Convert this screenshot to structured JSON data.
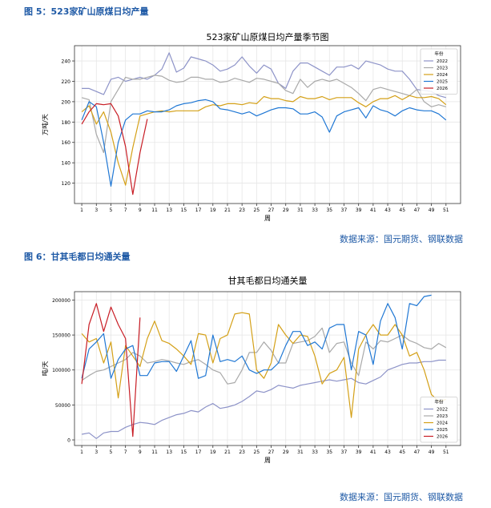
{
  "figures": [
    {
      "caption": "图 5：523家矿山原煤日均产量",
      "source": "数据来源：国元期货、钢联数据"
    },
    {
      "caption": "图 6：甘其毛都日均通关量",
      "source": "数据来源：国元期货、钢联数据"
    }
  ],
  "colors": {
    "2022": "#8d93c8",
    "2023": "#a9a9a9",
    "2024": "#d4a017",
    "2025": "#1f77d4",
    "2026": "#c81d25"
  },
  "chart_data": [
    {
      "type": "line",
      "title": "523家矿山原煤日均产量季节图",
      "xlabel": "周",
      "ylabel": "万吨/天",
      "xlim": [
        0,
        53
      ],
      "ylim": [
        100,
        255
      ],
      "xticks": [
        1,
        3,
        5,
        7,
        9,
        11,
        13,
        15,
        17,
        19,
        21,
        23,
        25,
        27,
        29,
        31,
        33,
        35,
        37,
        39,
        41,
        43,
        45,
        47,
        49,
        51
      ],
      "yticks": [
        120,
        140,
        160,
        180,
        200,
        220,
        240
      ],
      "legend_title": "年份",
      "legend_position": "top-right",
      "series": [
        {
          "name": "2022",
          "values": [
            213,
            213,
            210,
            207,
            222,
            224,
            220,
            222,
            224,
            222,
            226,
            232,
            248,
            229,
            233,
            244,
            242,
            240,
            236,
            230,
            232,
            236,
            244,
            235,
            228,
            236,
            232,
            218,
            213,
            230,
            238,
            238,
            234,
            230,
            226,
            234,
            234,
            236,
            232,
            240,
            238,
            236,
            232,
            230,
            230,
            222,
            212,
            211,
            210,
            206,
            204
          ]
        },
        {
          "name": "2023",
          "values": [
            204,
            202,
            168,
            150,
            200,
            212,
            224,
            222,
            222,
            224,
            226,
            225,
            221,
            219,
            220,
            224,
            224,
            222,
            222,
            219,
            220,
            223,
            221,
            219,
            223,
            222,
            220,
            218,
            211,
            208,
            222,
            214,
            220,
            222,
            220,
            222,
            218,
            214,
            208,
            201,
            212,
            214,
            212,
            210,
            208,
            206,
            212,
            200,
            195,
            197,
            195
          ]
        },
        {
          "name": "2024",
          "values": [
            190,
            196,
            178,
            190,
            170,
            140,
            118,
            155,
            186,
            188,
            190,
            191,
            190,
            191,
            191,
            191,
            191,
            195,
            197,
            196,
            198,
            198,
            197,
            199,
            198,
            205,
            203,
            203,
            201,
            200,
            205,
            203,
            203,
            205,
            202,
            204,
            204,
            204,
            199,
            195,
            200,
            203,
            203,
            206,
            202,
            206,
            204,
            204,
            205,
            203,
            197
          ]
        },
        {
          "name": "2025",
          "values": [
            182,
            200,
            195,
            160,
            117,
            160,
            182,
            188,
            188,
            191,
            190,
            190,
            192,
            196,
            198,
            199,
            201,
            202,
            200,
            193,
            192,
            190,
            188,
            190,
            186,
            189,
            192,
            194,
            194,
            193,
            188,
            188,
            190,
            185,
            170,
            186,
            190,
            192,
            194,
            184,
            196,
            192,
            190,
            186,
            191,
            194,
            192,
            191,
            191,
            188,
            182
          ]
        },
        {
          "name": "2026",
          "values": [
            178,
            190,
            198,
            197,
            198,
            186,
            156,
            109,
            150,
            183
          ]
        }
      ]
    },
    {
      "type": "line",
      "title": "甘其毛都日均通关量",
      "xlabel": "周",
      "ylabel": "吨/天",
      "xlim": [
        0,
        53
      ],
      "ylim": [
        -8000,
        212000
      ],
      "xticks": [
        1,
        3,
        5,
        7,
        9,
        11,
        13,
        15,
        17,
        19,
        21,
        23,
        25,
        27,
        29,
        31,
        33,
        35,
        37,
        39,
        41,
        43,
        45,
        47,
        49,
        51
      ],
      "yticks": [
        0,
        50000,
        100000,
        150000,
        200000
      ],
      "legend_title": "年份",
      "legend_position": "bottom-right",
      "series": [
        {
          "name": "2022",
          "values": [
            8000,
            10000,
            2000,
            10000,
            12000,
            12000,
            18000,
            22000,
            25000,
            24000,
            22000,
            28000,
            32000,
            36000,
            38000,
            42000,
            40000,
            47000,
            52000,
            45000,
            47000,
            50000,
            55000,
            62000,
            70000,
            68000,
            72000,
            78000,
            76000,
            74000,
            78000,
            80000,
            82000,
            84000,
            86000,
            84000,
            86000,
            88000,
            82000,
            80000,
            85000,
            90000,
            100000,
            104000,
            108000,
            110000,
            110000,
            112000,
            112000,
            114000,
            114000
          ]
        },
        {
          "name": "2023",
          "values": [
            85000,
            92000,
            98000,
            100000,
            105000,
            110000,
            115000,
            125000,
            120000,
            110000,
            112000,
            115000,
            113000,
            110000,
            108000,
            112000,
            115000,
            108000,
            100000,
            96000,
            80000,
            82000,
            100000,
            125000,
            125000,
            140000,
            128000,
            110000,
            110000,
            138000,
            140000,
            142000,
            148000,
            160000,
            125000,
            138000,
            140000,
            110000,
            92000,
            140000,
            130000,
            142000,
            140000,
            145000,
            150000,
            142000,
            138000,
            132000,
            130000,
            138000,
            132000
          ]
        },
        {
          "name": "2024",
          "values": [
            152000,
            140000,
            145000,
            110000,
            140000,
            60000,
            135000,
            120000,
            105000,
            145000,
            170000,
            142000,
            138000,
            130000,
            120000,
            108000,
            152000,
            150000,
            110000,
            145000,
            150000,
            180000,
            182000,
            180000,
            100000,
            88000,
            110000,
            165000,
            150000,
            138000,
            150000,
            148000,
            120000,
            80000,
            95000,
            100000,
            118000,
            32000,
            130000,
            150000,
            165000,
            150000,
            150000,
            165000,
            150000,
            120000,
            125000,
            100000,
            65000,
            55000,
            58000
          ]
        },
        {
          "name": "2025",
          "values": [
            88000,
            130000,
            140000,
            152000,
            88000,
            115000,
            130000,
            135000,
            92000,
            92000,
            110000,
            112000,
            112000,
            98000,
            120000,
            142000,
            88000,
            92000,
            150000,
            112000,
            115000,
            112000,
            120000,
            100000,
            95000,
            100000,
            100000,
            110000,
            135000,
            155000,
            155000,
            135000,
            140000,
            130000,
            160000,
            165000,
            165000,
            100000,
            155000,
            150000,
            108000,
            170000,
            195000,
            175000,
            130000,
            195000,
            192000,
            205000,
            207000
          ]
        },
        {
          "name": "2026",
          "values": [
            80000,
            165000,
            195000,
            155000,
            190000,
            165000,
            145000,
            5000,
            175000
          ]
        }
      ]
    }
  ]
}
